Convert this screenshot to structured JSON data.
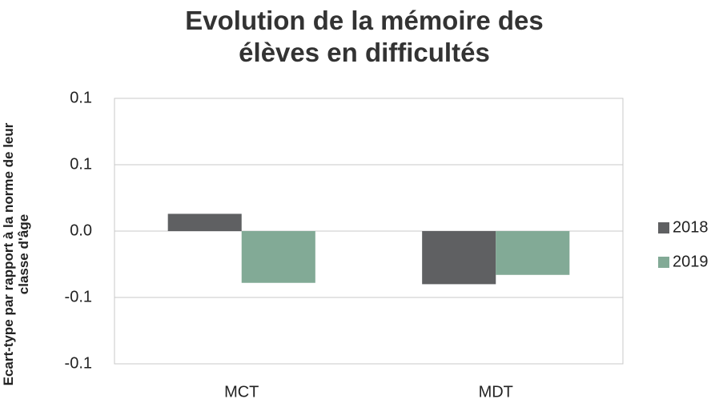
{
  "chart_data": {
    "type": "bar",
    "title": "Evolution de la mémoire des élèves en difficultés",
    "y_label": "Ecart-type par rapport à la norme de leur classe d'âge",
    "categories": [
      "MCT",
      "MDT"
    ],
    "series": [
      {
        "name": "2018",
        "color": "#5f6062",
        "values": [
          0.013,
          -0.04
        ]
      },
      {
        "name": "2019",
        "color": "#82aa96",
        "values": [
          -0.039,
          -0.033
        ]
      }
    ],
    "ylim": [
      -0.1,
      0.1
    ],
    "yticks": [
      -0.1,
      {
        "value": -0.05,
        "label": "-0.1"
      },
      {
        "value": 0,
        "label": "0.0"
      },
      {
        "value": 0.05,
        "label": "0.1"
      },
      0.1
    ],
    "grid": true,
    "legend": "right"
  }
}
